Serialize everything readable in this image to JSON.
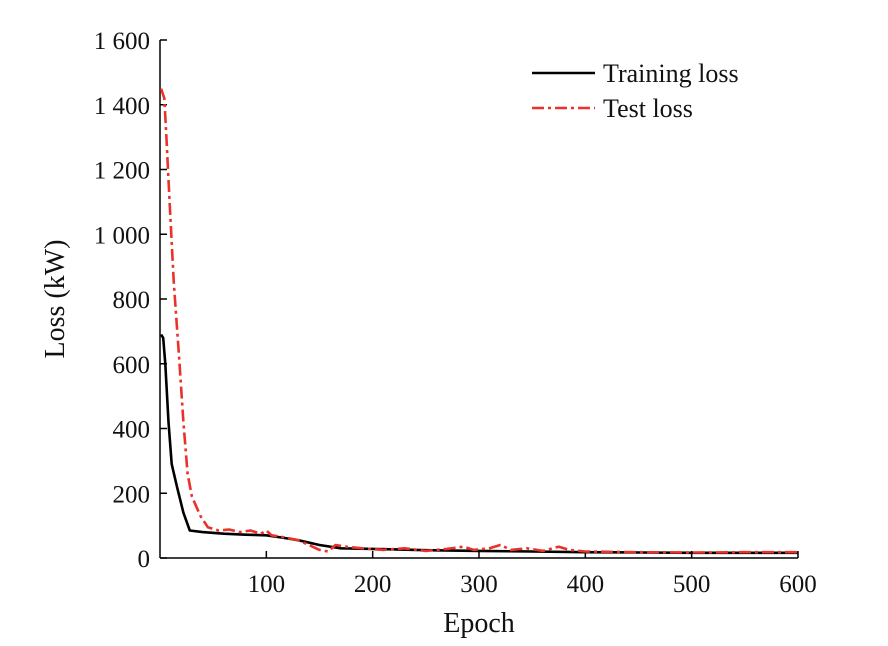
{
  "chart_data": {
    "type": "line",
    "title": "",
    "xlabel": "Epoch",
    "ylabel": "Loss (kW)",
    "xlim": [
      0,
      600
    ],
    "ylim": [
      0,
      1600
    ],
    "xticks": [
      100,
      200,
      300,
      400,
      500,
      600
    ],
    "xtick_labels": [
      "100",
      "200",
      "300",
      "400",
      "500",
      "600"
    ],
    "yticks": [
      0,
      200,
      400,
      600,
      800,
      1000,
      1200,
      1400,
      1600
    ],
    "ytick_labels": [
      "0",
      "200",
      "400",
      "600",
      "800",
      "1 000",
      "1 200",
      "1 400",
      "1 600"
    ],
    "grid": false,
    "legend": "top-right",
    "series": [
      {
        "name": "Training loss",
        "color": "#000000",
        "style": "solid",
        "points": [
          [
            1,
            690
          ],
          [
            3,
            680
          ],
          [
            5,
            600
          ],
          [
            8,
            420
          ],
          [
            11,
            290
          ],
          [
            16,
            220
          ],
          [
            22,
            140
          ],
          [
            28,
            85
          ],
          [
            40,
            80
          ],
          [
            60,
            75
          ],
          [
            80,
            72
          ],
          [
            100,
            70
          ],
          [
            115,
            63
          ],
          [
            130,
            55
          ],
          [
            150,
            40
          ],
          [
            170,
            30
          ],
          [
            200,
            28
          ],
          [
            250,
            24
          ],
          [
            300,
            22
          ],
          [
            350,
            20
          ],
          [
            400,
            18
          ],
          [
            450,
            17
          ],
          [
            500,
            16
          ],
          [
            550,
            16
          ],
          [
            600,
            16
          ]
        ]
      },
      {
        "name": "Test loss",
        "color": "#e8322a",
        "style": "dashdot",
        "points": [
          [
            1,
            1450
          ],
          [
            4,
            1420
          ],
          [
            6,
            1300
          ],
          [
            9,
            1100
          ],
          [
            13,
            850
          ],
          [
            18,
            620
          ],
          [
            22,
            420
          ],
          [
            26,
            260
          ],
          [
            30,
            190
          ],
          [
            38,
            130
          ],
          [
            45,
            95
          ],
          [
            55,
            85
          ],
          [
            65,
            88
          ],
          [
            75,
            80
          ],
          [
            85,
            85
          ],
          [
            95,
            75
          ],
          [
            100,
            85
          ],
          [
            105,
            70
          ],
          [
            115,
            65
          ],
          [
            130,
            55
          ],
          [
            140,
            40
          ],
          [
            150,
            25
          ],
          [
            158,
            20
          ],
          [
            165,
            40
          ],
          [
            175,
            35
          ],
          [
            190,
            30
          ],
          [
            210,
            25
          ],
          [
            230,
            30
          ],
          [
            250,
            22
          ],
          [
            270,
            28
          ],
          [
            285,
            35
          ],
          [
            295,
            25
          ],
          [
            310,
            30
          ],
          [
            320,
            40
          ],
          [
            330,
            25
          ],
          [
            345,
            30
          ],
          [
            360,
            22
          ],
          [
            375,
            35
          ],
          [
            385,
            25
          ],
          [
            400,
            20
          ],
          [
            450,
            18
          ],
          [
            500,
            17
          ],
          [
            550,
            18
          ],
          [
            600,
            18
          ]
        ]
      }
    ]
  }
}
